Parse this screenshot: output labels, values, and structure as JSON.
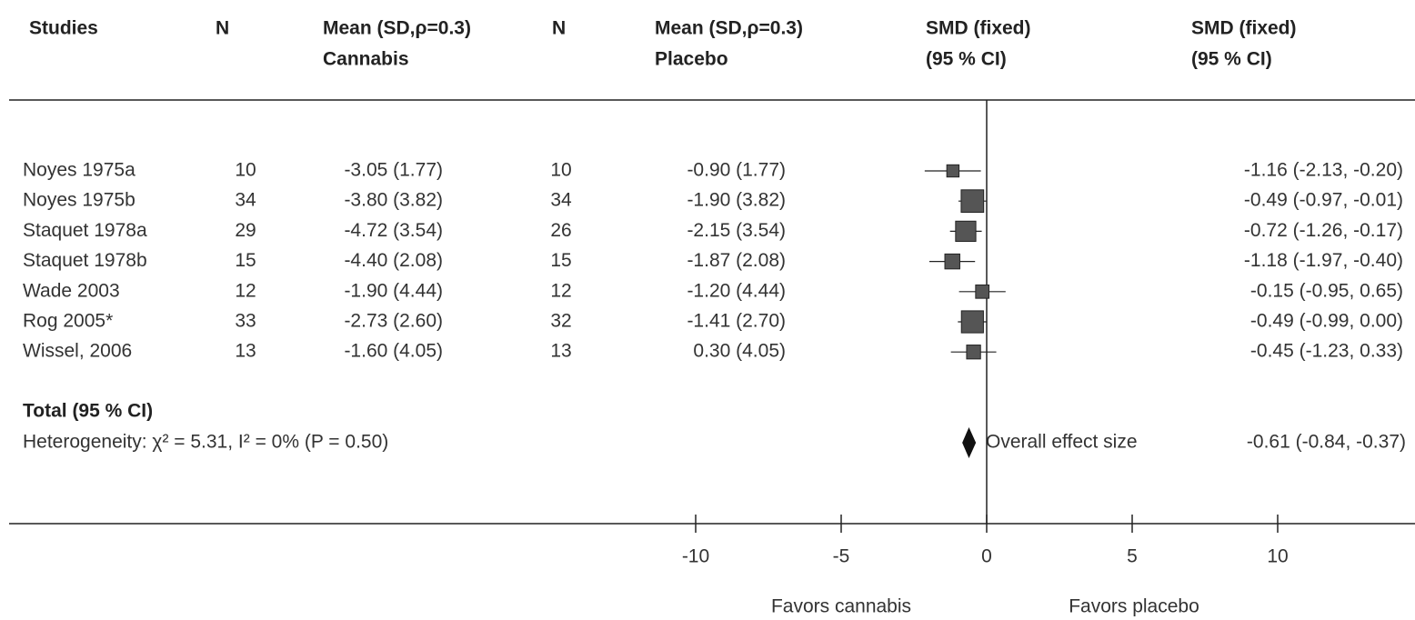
{
  "chart_data": {
    "type": "forest",
    "headers": [
      [
        "Studies"
      ],
      [
        "N"
      ],
      [
        "Mean (SD,ρ=0.3)",
        "Cannabis"
      ],
      [
        "N"
      ],
      [
        "Mean (SD,ρ=0.3)",
        "Placebo"
      ],
      [
        "SMD (fixed)",
        "(95 % CI)"
      ],
      [
        "SMD (fixed)",
        "(95 % CI)"
      ]
    ],
    "categories": [
      "Noyes 1975a",
      "Noyes 1975b",
      "Staquet 1978a",
      "Staquet 1978b",
      "Wade 2003",
      "Rog 2005*",
      "Wissel, 2006"
    ],
    "n_cannabis": [
      10,
      34,
      29,
      15,
      12,
      33,
      13
    ],
    "mean_cannabis": [
      "-3.05 (1.77)",
      "-3.80 (3.82)",
      "-4.72 (3.54)",
      "-4.40 (2.08)",
      "-1.90 (4.44)",
      "-2.73 (2.60)",
      "-1.60 (4.05)"
    ],
    "n_placebo": [
      10,
      34,
      26,
      15,
      12,
      32,
      13
    ],
    "mean_placebo": [
      "-0.90 (1.77)",
      "-1.90 (3.82)",
      "-2.15 (3.54)",
      "-1.87 (2.08)",
      "-1.20 (4.44)",
      "-1.41 (2.70)",
      "0.30 (4.05)"
    ],
    "values": [
      -1.16,
      -0.49,
      -0.72,
      -1.18,
      -0.15,
      -0.49,
      -0.45
    ],
    "ci_low": [
      -2.13,
      -0.97,
      -1.26,
      -1.97,
      -0.95,
      -0.99,
      -1.23
    ],
    "ci_high": [
      -0.2,
      -0.01,
      -0.17,
      -0.4,
      0.65,
      0.0,
      0.33
    ],
    "value_labels": [
      "-1.16 (-2.13, -0.20)",
      "-0.49 (-0.97, -0.01)",
      "-0.72 (-1.26, -0.17)",
      "-1.18 (-1.97, -0.40)",
      "-0.15 (-0.95, 0.65)",
      "-0.49 (-0.99, 0.00)",
      "-0.45 (-1.23, 0.33)"
    ],
    "color": "#555555",
    "total": {
      "label": "Total (95 % CI)",
      "heterogeneity": "Heterogeneity: χ² = 5.31, I² = 0% (P = 0.50)",
      "annotation": "Overall effect size",
      "value": -0.61,
      "ci_low": -0.84,
      "ci_high": -0.37,
      "value_label": "-0.61 (-0.84, -0.37)"
    },
    "xlim": [
      -10,
      10
    ],
    "xticks": [
      -10,
      -5,
      0,
      5,
      10
    ],
    "xlabels": [
      "Favors cannabis",
      "Favors placebo"
    ]
  }
}
